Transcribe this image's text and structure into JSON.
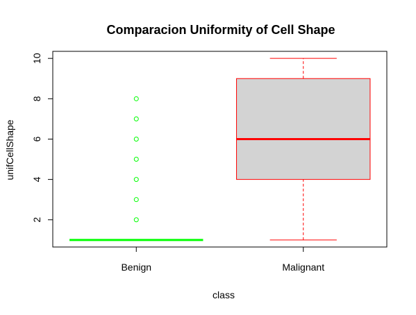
{
  "chart_data": {
    "type": "boxplot",
    "title": "Comparacion Uniformity of Cell Shape",
    "xlabel": "class",
    "ylabel": "unifCellShape",
    "ylim": [
      0.65,
      10.35
    ],
    "y_ticks": [
      2,
      4,
      6,
      8,
      10
    ],
    "categories": [
      "Benign",
      "Malignant"
    ],
    "boxes": [
      {
        "category": "Benign",
        "min": 1,
        "q1": 1,
        "median": 1,
        "q3": 1,
        "max": 1,
        "outliers": [
          2,
          3,
          4,
          5,
          6,
          7,
          8
        ],
        "color": "#00ff00",
        "fill": "#d3d3d3"
      },
      {
        "category": "Malignant",
        "min": 1,
        "q1": 4,
        "median": 6,
        "q3": 9,
        "max": 10,
        "outliers": [],
        "color": "#ff0000",
        "fill": "#d3d3d3"
      }
    ],
    "grid": false,
    "legend": "none"
  }
}
